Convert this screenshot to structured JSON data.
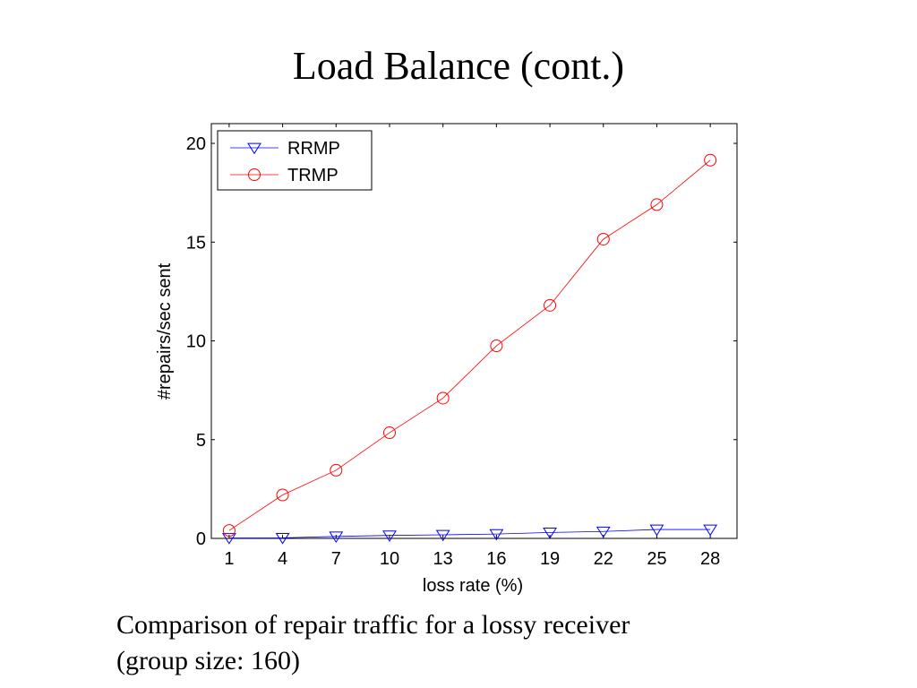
{
  "slide": {
    "title": "Load Balance (cont.)",
    "caption_lines": [
      "Comparison of repair traffic for a lossy receiver",
      "(group size: 160)"
    ]
  },
  "chart_data": {
    "type": "line",
    "title": "",
    "xlabel": "loss rate (%)",
    "ylabel": "#repairs/sec sent",
    "categories": [
      "1",
      "4",
      "7",
      "10",
      "13",
      "16",
      "19",
      "22",
      "25",
      "28"
    ],
    "x": [
      1,
      4,
      7,
      10,
      13,
      16,
      19,
      22,
      25,
      28
    ],
    "xlim": [
      0,
      29.5
    ],
    "ylim": [
      0,
      21
    ],
    "yticks": [
      0,
      5,
      10,
      15,
      20
    ],
    "grid": false,
    "legend_position": "top-left",
    "series": [
      {
        "name": "RRMP",
        "values": [
          0.02,
          0.03,
          0.1,
          0.15,
          0.18,
          0.22,
          0.3,
          0.35,
          0.45,
          0.45
        ],
        "color": "#0000ff",
        "marker": "triangle-down"
      },
      {
        "name": "TRMP",
        "values": [
          0.4,
          2.2,
          3.45,
          5.35,
          7.1,
          9.75,
          11.8,
          15.15,
          16.9,
          19.15
        ],
        "color": "#ff0000",
        "marker": "circle"
      }
    ]
  }
}
